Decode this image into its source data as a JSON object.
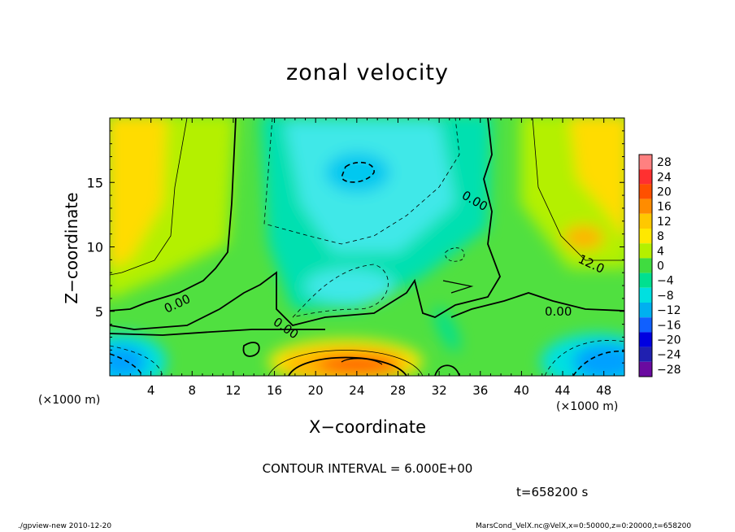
{
  "chart_data": {
    "type": "heatmap",
    "title": "zonal velocity",
    "xlabel": "X−coordinate",
    "ylabel": "Z−coordinate",
    "x_unit_left": "(×1000 m)",
    "x_unit_right": "(×1000 m)",
    "xlim": [
      0,
      50
    ],
    "ylim": [
      0,
      20
    ],
    "x_ticks": [
      4,
      8,
      12,
      16,
      20,
      24,
      28,
      32,
      36,
      40,
      44,
      48
    ],
    "x_tick_labels": [
      "4",
      "8",
      "12",
      "16",
      "20",
      "24",
      "28",
      "32",
      "36",
      "40",
      "44",
      "48"
    ],
    "y_ticks": [
      5,
      10,
      15
    ],
    "y_tick_labels": [
      "5",
      "10",
      "15"
    ],
    "colorbar": {
      "levels": [
        28,
        24,
        20,
        16,
        12,
        8,
        4,
        0,
        -4,
        -8,
        -12,
        -16,
        -20,
        -24,
        -28
      ],
      "labels": [
        "28",
        "24",
        "20",
        "16",
        "12",
        "8",
        "4",
        "0",
        "−4",
        "−8",
        "−12",
        "−16",
        "−20",
        "−24",
        "−28"
      ],
      "colors": [
        "#ff8080",
        "#ff3030",
        "#ff5000",
        "#ff8c00",
        "#ffc800",
        "#ffe800",
        "#b4f000",
        "#40dc40",
        "#00e090",
        "#00e0e0",
        "#00b0f0",
        "#1060ff",
        "#0000e0",
        "#2020b0",
        "#6a0aa0"
      ]
    },
    "contour_labels": [
      "0.00",
      "0.00",
      "0.00",
      "0.00",
      "12.0"
    ],
    "annotation_contour": "CONTOUR INTERVAL = 6.000E+00",
    "annotation_time": "t=658200 s"
  },
  "footer": {
    "left": "./gpview-new   2010-12-20",
    "right": "MarsCond_VelX.nc@VelX,x=0:50000,z=0:20000,t=658200"
  }
}
